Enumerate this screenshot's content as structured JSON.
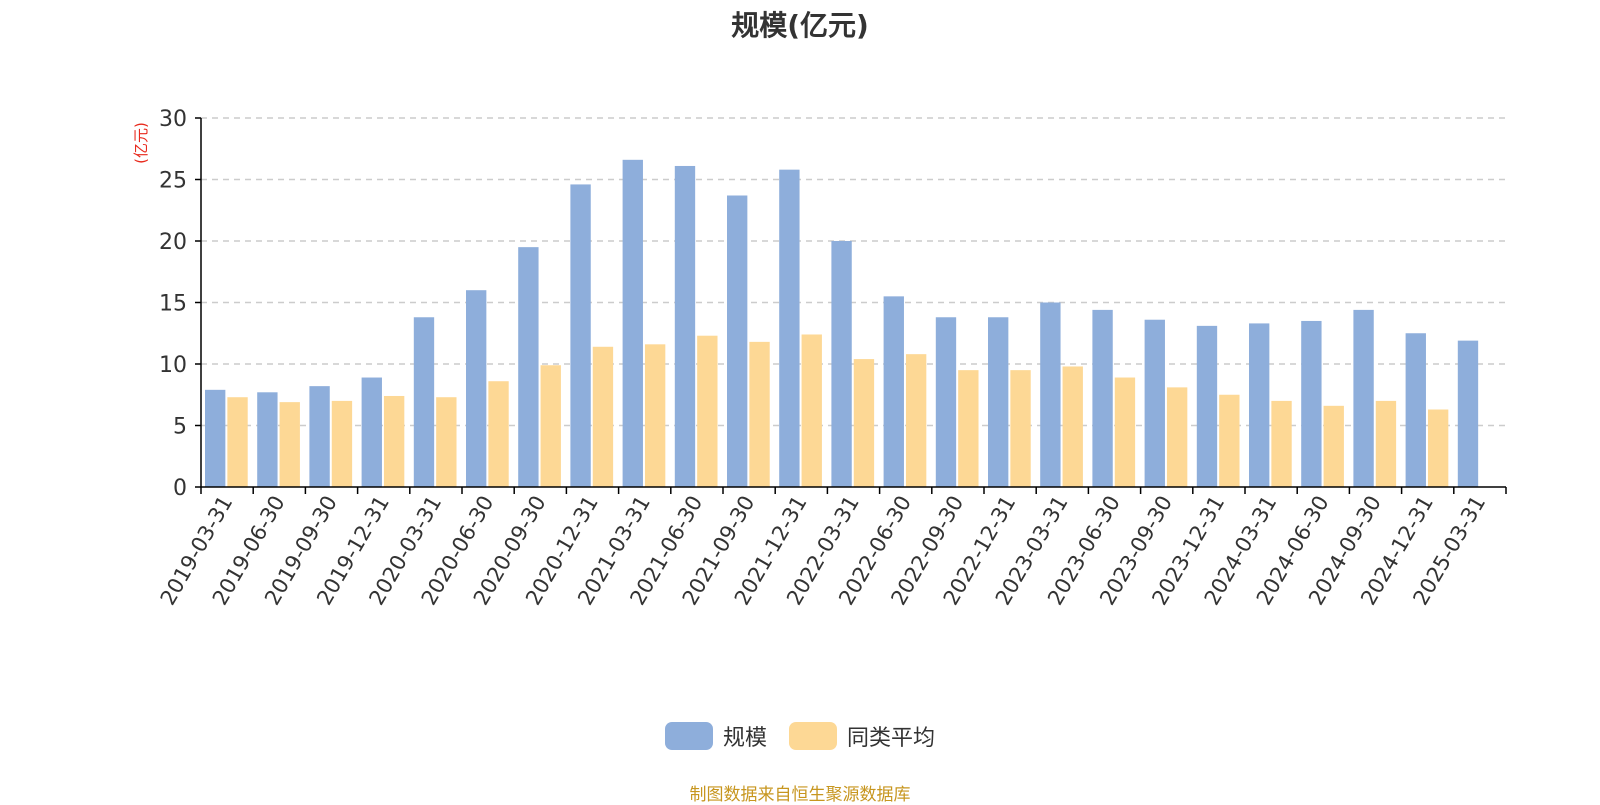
{
  "chart_data": {
    "type": "bar",
    "title": "规模(亿元)",
    "ylabel": "(亿元)",
    "xlabel": "",
    "ylim": [
      0,
      30
    ],
    "yticks": [
      0,
      5,
      10,
      15,
      20,
      25,
      30
    ],
    "grid": true,
    "legend_position": "bottom",
    "categories": [
      "2019-03-31",
      "2019-06-30",
      "2019-09-30",
      "2019-12-31",
      "2020-03-31",
      "2020-06-30",
      "2020-09-30",
      "2020-12-31",
      "2021-03-31",
      "2021-06-30",
      "2021-09-30",
      "2021-12-31",
      "2022-03-31",
      "2022-06-30",
      "2022-09-30",
      "2022-12-31",
      "2023-03-31",
      "2023-06-30",
      "2023-09-30",
      "2023-12-31",
      "2024-03-31",
      "2024-06-30",
      "2024-09-30",
      "2024-12-31",
      "2025-03-31"
    ],
    "series": [
      {
        "name": "规模",
        "color": "#8eaedb",
        "values": [
          7.9,
          7.7,
          8.2,
          8.9,
          13.8,
          16.0,
          19.5,
          24.6,
          26.6,
          26.1,
          23.7,
          25.8,
          20.0,
          15.5,
          13.8,
          13.8,
          15.0,
          14.4,
          13.6,
          13.1,
          13.3,
          13.5,
          14.4,
          12.5,
          11.9
        ]
      },
      {
        "name": "同类平均",
        "color": "#fdd895",
        "values": [
          7.3,
          6.9,
          7.0,
          7.4,
          7.3,
          8.6,
          9.9,
          11.4,
          11.6,
          12.3,
          11.8,
          12.4,
          10.4,
          10.8,
          9.5,
          9.5,
          9.8,
          8.9,
          8.1,
          7.5,
          7.0,
          6.6,
          7.0,
          6.3,
          null
        ]
      }
    ]
  },
  "source": "制图数据来自恒生聚源数据库",
  "colors": {
    "axis": "#000000",
    "grid": "#cccccc",
    "tick_text": "#333333",
    "ylabel": "#e8291c",
    "source": "#c7961f"
  }
}
